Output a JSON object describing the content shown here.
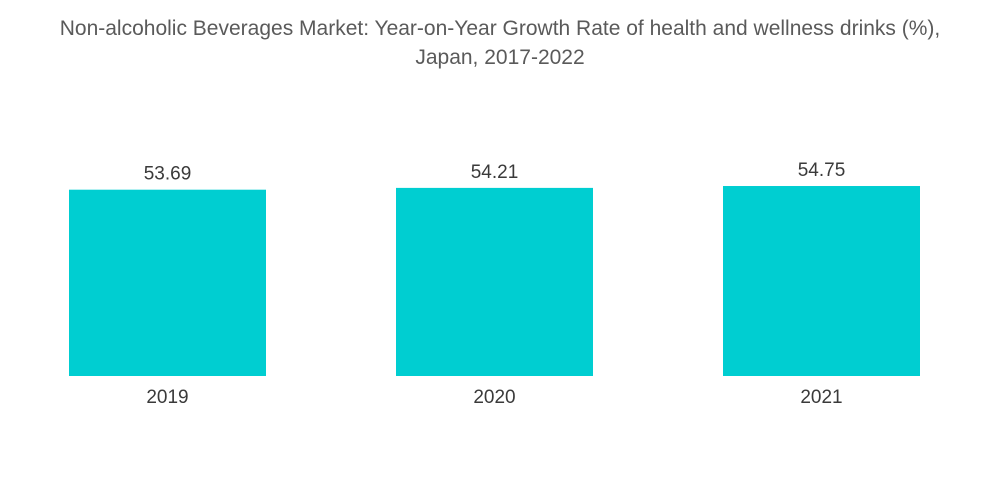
{
  "chart_data": {
    "type": "bar",
    "title_line1": "Non-alcoholic Beverages Market: Year-on-Year Growth Rate of health and wellness drinks (%),",
    "title_line2": "Japan, 2017-2022",
    "categories": [
      "2019",
      "2020",
      "2021"
    ],
    "values": [
      53.69,
      54.21,
      54.75
    ],
    "value_labels": [
      "53.69",
      "54.21",
      "54.75"
    ],
    "bar_color": "#00CED1",
    "grid": false,
    "legend": "none"
  }
}
